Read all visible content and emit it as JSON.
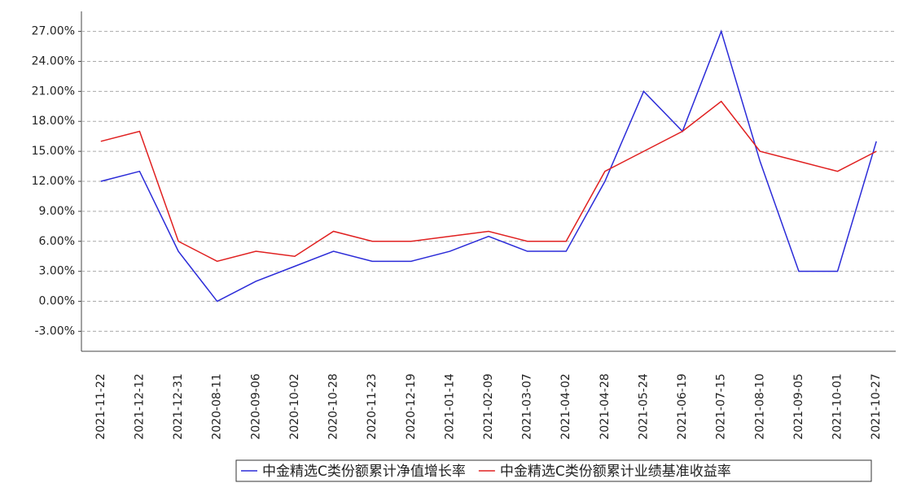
{
  "chart_data": {
    "type": "line",
    "categories": [
      "2021-11-22",
      "2021-12-12",
      "2021-12-31",
      "2020-08-11",
      "2020-09-06",
      "2020-10-02",
      "2020-10-28",
      "2020-11-23",
      "2020-12-19",
      "2021-01-14",
      "2021-02-09",
      "2021-03-07",
      "2021-04-02",
      "2021-04-28",
      "2021-05-24",
      "2021-06-19",
      "2021-07-15",
      "2021-08-10",
      "2021-09-05",
      "2021-10-01",
      "2021-10-27"
    ],
    "series": [
      {
        "name": "中金精选C类份额累计净值增长率",
        "color": "#2b2bd8",
        "values": [
          12,
          13,
          5,
          0,
          2,
          3.5,
          5,
          4,
          4,
          5,
          6.5,
          5,
          5,
          12,
          21,
          17,
          27,
          14,
          3,
          3,
          16
        ]
      },
      {
        "name": "中金精选C类份额累计业绩基准收益率",
        "color": "#e02020",
        "values": [
          16,
          17,
          6,
          4,
          5,
          4.5,
          7,
          6,
          6,
          6.5,
          7,
          6,
          6,
          13,
          15,
          17,
          20,
          15,
          14,
          13,
          15
        ]
      }
    ],
    "ylim": [
      -5,
      29
    ],
    "yticks": [
      {
        "value": -3,
        "label": "-3.00%"
      },
      {
        "value": 0,
        "label": "0.00%"
      },
      {
        "value": 3,
        "label": "3.00%"
      },
      {
        "value": 6,
        "label": "6.00%"
      },
      {
        "value": 9,
        "label": "9.00%"
      },
      {
        "value": 12,
        "label": "12.00%"
      },
      {
        "value": 15,
        "label": "15.00%"
      },
      {
        "value": 18,
        "label": "18.00%"
      },
      {
        "value": 21,
        "label": "21.00%"
      },
      {
        "value": 24,
        "label": "24.00%"
      },
      {
        "value": 27,
        "label": "27.00%"
      }
    ],
    "grid": true
  }
}
